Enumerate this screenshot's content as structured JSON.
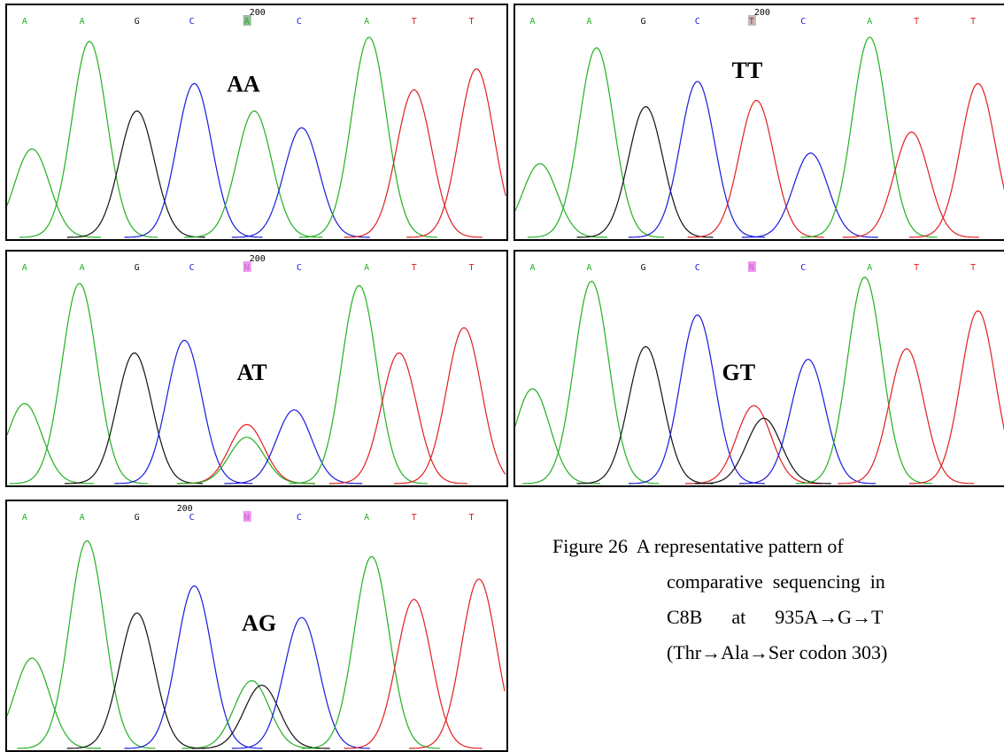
{
  "colors": {
    "A": "#22b022",
    "C": "#1a1adc",
    "G": "#111111",
    "T": "#e02020",
    "N": "#cc66cc",
    "grey": "#aaaaaa"
  },
  "panels": [
    {
      "id": "AA",
      "label": "AA",
      "pos_label": "200",
      "bases": [
        "A",
        "A",
        "G",
        "C",
        "A",
        "C",
        "A",
        "T",
        "T"
      ],
      "highlight_index": 4,
      "highlight_color": "#99bb99",
      "peaks": [
        {
          "base": "A",
          "x": 0.05,
          "h": 0.42
        },
        {
          "base": "A",
          "x": 0.165,
          "h": 0.93
        },
        {
          "base": "G",
          "x": 0.26,
          "h": 0.6
        },
        {
          "base": "C",
          "x": 0.375,
          "h": 0.73
        },
        {
          "base": "A",
          "x": 0.495,
          "h": 0.6
        },
        {
          "base": "C",
          "x": 0.59,
          "h": 0.52
        },
        {
          "base": "A",
          "x": 0.725,
          "h": 0.95
        },
        {
          "base": "T",
          "x": 0.815,
          "h": 0.7
        },
        {
          "base": "T",
          "x": 0.94,
          "h": 0.8
        }
      ]
    },
    {
      "id": "TT",
      "label": "TT",
      "pos_label": "200",
      "bases": [
        "A",
        "A",
        "G",
        "C",
        "T",
        "C",
        "A",
        "T",
        "T"
      ],
      "highlight_index": 4,
      "highlight_color": "#bbbbbb",
      "peaks": [
        {
          "base": "A",
          "x": 0.05,
          "h": 0.35
        },
        {
          "base": "A",
          "x": 0.165,
          "h": 0.9
        },
        {
          "base": "G",
          "x": 0.265,
          "h": 0.62
        },
        {
          "base": "C",
          "x": 0.37,
          "h": 0.74
        },
        {
          "base": "T",
          "x": 0.49,
          "h": 0.65
        },
        {
          "base": "C",
          "x": 0.6,
          "h": 0.4
        },
        {
          "base": "A",
          "x": 0.72,
          "h": 0.95
        },
        {
          "base": "T",
          "x": 0.805,
          "h": 0.5
        },
        {
          "base": "T",
          "x": 0.94,
          "h": 0.73
        }
      ]
    },
    {
      "id": "AT",
      "label": "AT",
      "pos_label": "200",
      "bases": [
        "A",
        "A",
        "G",
        "C",
        "N",
        "C",
        "A",
        "T",
        "T"
      ],
      "highlight_index": 4,
      "highlight_color": "#ee99ee",
      "peaks": [
        {
          "base": "A",
          "x": 0.035,
          "h": 0.38
        },
        {
          "base": "A",
          "x": 0.145,
          "h": 0.95
        },
        {
          "base": "G",
          "x": 0.255,
          "h": 0.62
        },
        {
          "base": "C",
          "x": 0.355,
          "h": 0.68
        },
        {
          "base": "T",
          "x": 0.48,
          "h": 0.28
        },
        {
          "base": "A",
          "x": 0.48,
          "h": 0.22
        },
        {
          "base": "C",
          "x": 0.575,
          "h": 0.35
        },
        {
          "base": "A",
          "x": 0.705,
          "h": 0.94
        },
        {
          "base": "T",
          "x": 0.785,
          "h": 0.62
        },
        {
          "base": "T",
          "x": 0.915,
          "h": 0.74
        }
      ]
    },
    {
      "id": "GT",
      "label": "GT",
      "pos_label": "",
      "bases": [
        "A",
        "A",
        "G",
        "C",
        "N",
        "C",
        "A",
        "T",
        "T"
      ],
      "highlight_index": 4,
      "highlight_color": "#ee99ee",
      "peaks": [
        {
          "base": "A",
          "x": 0.035,
          "h": 0.45
        },
        {
          "base": "A",
          "x": 0.155,
          "h": 0.96
        },
        {
          "base": "G",
          "x": 0.265,
          "h": 0.65
        },
        {
          "base": "C",
          "x": 0.37,
          "h": 0.8
        },
        {
          "base": "T",
          "x": 0.485,
          "h": 0.37
        },
        {
          "base": "G",
          "x": 0.505,
          "h": 0.31
        },
        {
          "base": "C",
          "x": 0.595,
          "h": 0.59
        },
        {
          "base": "A",
          "x": 0.71,
          "h": 0.98
        },
        {
          "base": "T",
          "x": 0.795,
          "h": 0.64
        },
        {
          "base": "T",
          "x": 0.94,
          "h": 0.82
        }
      ]
    },
    {
      "id": "AG",
      "label": "AG",
      "pos_label": "200",
      "bases": [
        "A",
        "A",
        "G",
        "C",
        "N",
        "C",
        "A",
        "T",
        "T"
      ],
      "highlight_index": 4,
      "highlight_color": "#ee99ee",
      "peaks": [
        {
          "base": "A",
          "x": 0.05,
          "h": 0.4
        },
        {
          "base": "A",
          "x": 0.16,
          "h": 0.92
        },
        {
          "base": "G",
          "x": 0.26,
          "h": 0.6
        },
        {
          "base": "C",
          "x": 0.375,
          "h": 0.72
        },
        {
          "base": "A",
          "x": 0.49,
          "h": 0.3
        },
        {
          "base": "G",
          "x": 0.51,
          "h": 0.28
        },
        {
          "base": "C",
          "x": 0.59,
          "h": 0.58
        },
        {
          "base": "A",
          "x": 0.73,
          "h": 0.85
        },
        {
          "base": "T",
          "x": 0.815,
          "h": 0.66
        },
        {
          "base": "T",
          "x": 0.945,
          "h": 0.75
        }
      ]
    }
  ],
  "caption": {
    "line1": "Figure 26  A representative pattern of",
    "line2": "comparative  sequencing  in",
    "line3": "C8B      at      935A→G→T",
    "line4": "(Thr→Ala→Ser codon 303)"
  }
}
